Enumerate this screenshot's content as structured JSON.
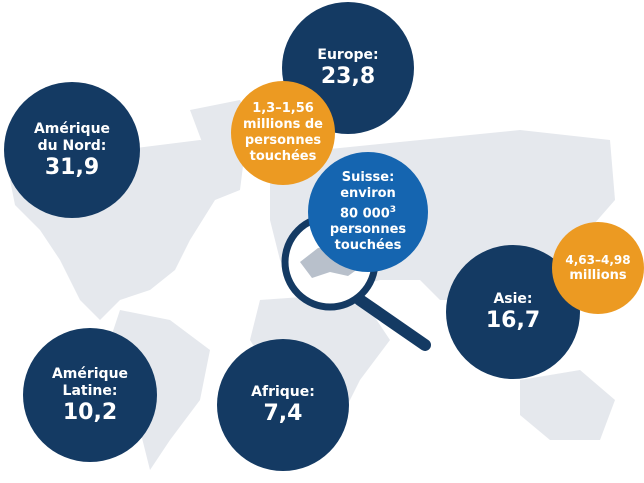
{
  "colors": {
    "region": "#143a63",
    "range": "#ec9a22",
    "switzerland": "#1565b0",
    "land": "#e5e8ed"
  },
  "regions": [
    {
      "label": "Amérique du Nord:",
      "value": "31,9"
    },
    {
      "label": "Europe:",
      "value": "23,8"
    },
    {
      "label": "Asie:",
      "value": "16,7"
    },
    {
      "label": "Amérique Latine:",
      "value": "10,2"
    },
    {
      "label": "Afrique:",
      "value": "7,4"
    }
  ],
  "europe_range": [
    "1,3–1,56",
    "millions de",
    "personnes",
    "touchées"
  ],
  "asia_range": [
    "4,63–4,98",
    "millions"
  ],
  "switzerland": {
    "line1": "Suisse:",
    "line2": "environ",
    "number": "80 000",
    "footnote": "3",
    "line4": "personnes",
    "line5": "touchées"
  },
  "icons": {
    "magnifier": "magnifying-glass-icon"
  }
}
